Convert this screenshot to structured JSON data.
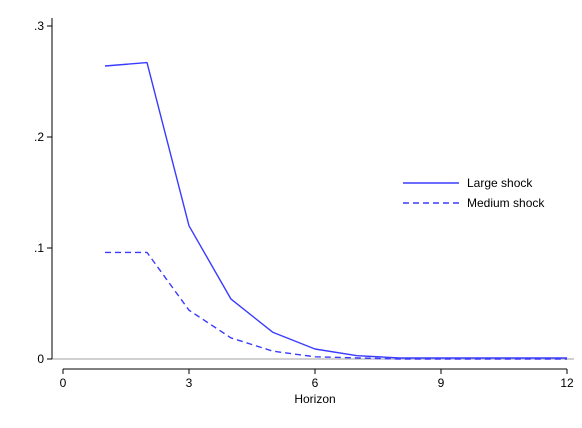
{
  "chart_data": {
    "type": "line",
    "title": "",
    "xlabel": "Horizon",
    "ylabel": "",
    "x": [
      1,
      2,
      3,
      4,
      5,
      6,
      7,
      8,
      9,
      10,
      11,
      12
    ],
    "xlim": [
      0,
      12
    ],
    "ylim": [
      0,
      0.3
    ],
    "xticks": [
      0,
      3,
      6,
      9,
      12
    ],
    "xtick_labels": [
      "0",
      "3",
      "6",
      "9",
      "12"
    ],
    "yticks": [
      0,
      0.1,
      0.2,
      0.3
    ],
    "ytick_labels": [
      "0",
      ".1",
      ".2",
      ".3"
    ],
    "grid": false,
    "legend_position": "right",
    "series": [
      {
        "name": "Large shock",
        "style": "solid",
        "color": "#3b3bff",
        "values": [
          0.264,
          0.267,
          0.12,
          0.054,
          0.024,
          0.009,
          0.003,
          0.001,
          0.001,
          0.001,
          0.001,
          0.001
        ]
      },
      {
        "name": "Medium shock",
        "style": "dashed",
        "color": "#3b3bff",
        "values": [
          0.096,
          0.096,
          0.044,
          0.019,
          0.007,
          0.002,
          0.001,
          0.0,
          0.0,
          0.0,
          0.0,
          0.0
        ]
      }
    ]
  }
}
